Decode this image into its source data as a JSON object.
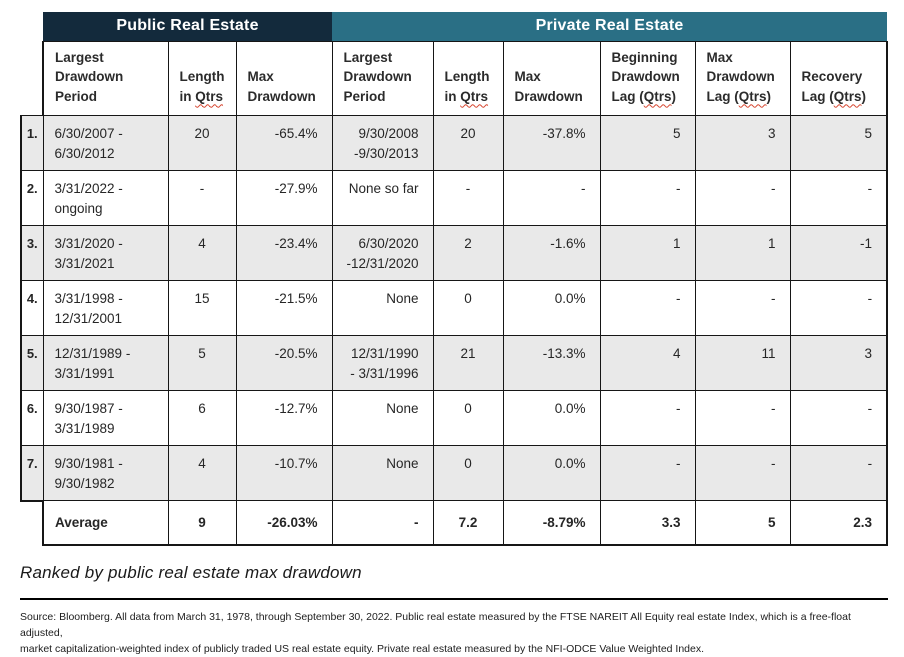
{
  "colors": {
    "public_banner": "#132a3c",
    "private_banner": "#2a6f85",
    "row_stripe": "#e9e9e9",
    "border": "#161616",
    "squiggle": "#d6452f"
  },
  "table": {
    "groups": [
      {
        "label": "Public Real Estate"
      },
      {
        "label": "Private Real Estate"
      }
    ],
    "columns": [
      {
        "pre": "Largest\nDrawdown\nPeriod"
      },
      {
        "pre": "Length\nin ",
        "qtrs": "Qtrs"
      },
      {
        "pre": "Max\nDrawdown"
      },
      {
        "pre": "Largest\nDrawdown\nPeriod"
      },
      {
        "pre": "Length\nin ",
        "qtrs": "Qtrs"
      },
      {
        "pre": "Max\nDrawdown"
      },
      {
        "pre": "Beginning\nDrawdown\nLag (",
        "qtrs": "Qtrs",
        "post": ")"
      },
      {
        "pre": "Max\nDrawdown\nLag (",
        "qtrs": "Qtrs",
        "post": ")"
      },
      {
        "pre": "Recovery\nLag (",
        "qtrs": "Qtrs",
        "post": ")"
      }
    ],
    "rows": [
      {
        "num": "1.",
        "c": [
          "6/30/2007 -\n6/30/2012",
          "20",
          "-65.4%",
          "9/30/2008\n-9/30/2013",
          "20",
          "-37.8%",
          "5",
          "3",
          "5"
        ]
      },
      {
        "num": "2.",
        "c": [
          "3/31/2022 -\nongoing",
          "-",
          "-27.9%",
          "None so far",
          "-",
          "-",
          "-",
          "-",
          "-"
        ]
      },
      {
        "num": "3.",
        "c": [
          "3/31/2020 -\n3/31/2021",
          "4",
          "-23.4%",
          "6/30/2020\n-12/31/2020",
          "2",
          "-1.6%",
          "1",
          "1",
          "-1"
        ]
      },
      {
        "num": "4.",
        "c": [
          "3/31/1998 -\n12/31/2001",
          "15",
          "-21.5%",
          "None",
          "0",
          "0.0%",
          "-",
          "-",
          "-"
        ]
      },
      {
        "num": "5.",
        "c": [
          "12/31/1989 -\n3/31/1991",
          "5",
          "-20.5%",
          "12/31/1990\n- 3/31/1996",
          "21",
          "-13.3%",
          "4",
          "11",
          "3"
        ]
      },
      {
        "num": "6.",
        "c": [
          "9/30/1987 -\n3/31/1989",
          "6",
          "-12.7%",
          "None",
          "0",
          "0.0%",
          "-",
          "-",
          "-"
        ]
      },
      {
        "num": "7.",
        "c": [
          "9/30/1981 -\n9/30/1982",
          "4",
          "-10.7%",
          "None",
          "0",
          "0.0%",
          "-",
          "-",
          "-"
        ]
      }
    ],
    "average": {
      "label": "Average",
      "c": [
        "Average",
        "9",
        "-26.03%",
        "-",
        "7.2",
        "-8.79%",
        "3.3",
        "5",
        "2.3"
      ]
    }
  },
  "caption": "Ranked by public real estate max drawdown",
  "source": {
    "line1": "Source: Bloomberg. All data from March 31, 1978, through September 30, 2022. Public real estate measured by the FTSE NAREIT All Equity real estate Index, which is a free-float adjusted,",
    "line2": "market capitalization-weighted index of publicly traded US real estate equity. Private real estate measured by the NFI-ODCE Value Weighted Index."
  }
}
